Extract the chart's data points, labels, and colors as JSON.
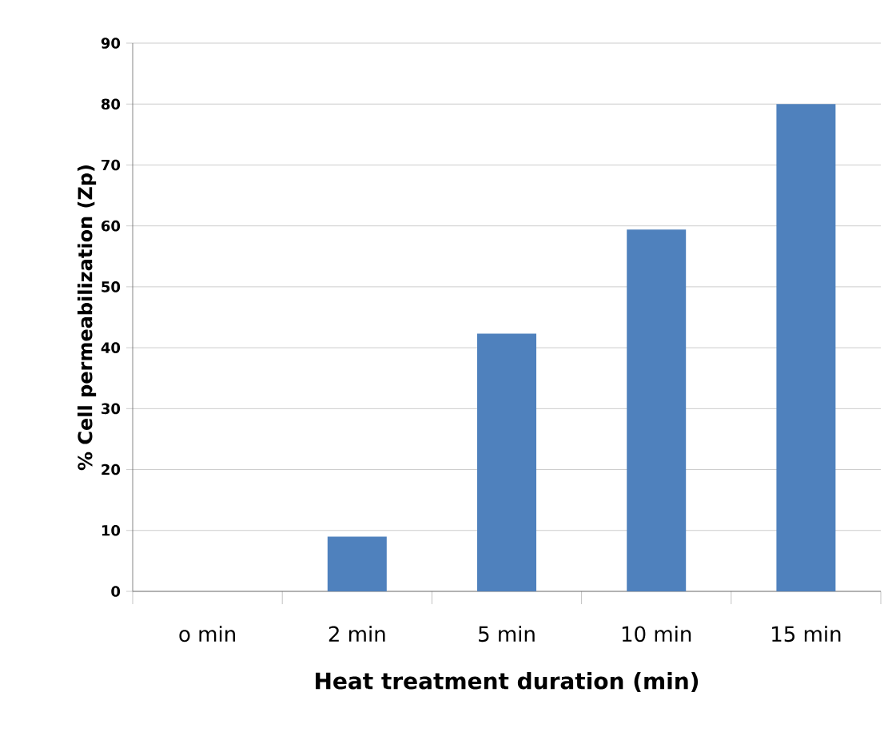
{
  "chart_data": {
    "type": "bar",
    "xlabel": "Heat treatment duration (min)",
    "ylabel": "% Cell permeabilization (Zp)",
    "categories": [
      "o min",
      "2 min",
      "5 min",
      "10 min",
      "15 min"
    ],
    "values": [
      0,
      9,
      42.3,
      59.4,
      80
    ],
    "color": "#4f81bd",
    "ylim": [
      0,
      90
    ],
    "yticks": [
      0,
      10,
      20,
      30,
      40,
      50,
      60,
      70,
      80,
      90
    ],
    "grid": "y"
  }
}
